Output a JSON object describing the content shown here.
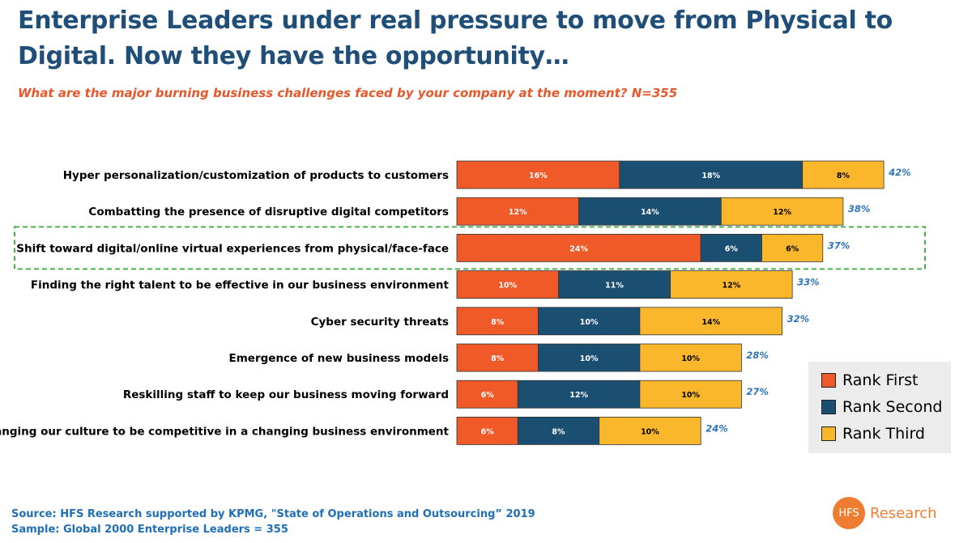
{
  "header": {
    "title": "Enterprise Leaders under real pressure to move from Physical to Digital.  Now they have the opportunity…",
    "subtitle": "What are the major burning business challenges faced by your company at the moment? N=355"
  },
  "colors": {
    "rank_first": "#f05a28",
    "rank_second": "#1b4f72",
    "rank_third": "#fbb72c",
    "total_label": "#2e75b6",
    "highlight_border": "#4caf50"
  },
  "chart_data": {
    "type": "bar",
    "orientation": "horizontal",
    "stacked": true,
    "categories": [
      "Hyper personalization/customization of products to customers",
      "Combatting the presence of disruptive digital competitors",
      "Shift toward digital/online virtual experiences from physical/face-face",
      "Finding the right talent to be effective in our business environment",
      "Cyber security threats",
      "Emergence of new business models",
      "Reskilling staff to keep our business moving forward",
      "Changing our culture to be competitive in a changing business environment"
    ],
    "series": [
      {
        "name": "Rank First",
        "values": [
          16,
          12,
          24,
          10,
          8,
          8,
          6,
          6
        ],
        "labels": [
          "16%",
          "12%",
          "24%",
          "10%",
          "8%",
          "8%",
          "6%",
          "6%"
        ]
      },
      {
        "name": "Rank Second",
        "values": [
          18,
          14,
          6,
          11,
          10,
          10,
          12,
          8
        ],
        "labels": [
          "18%",
          "14%",
          "6%",
          "11%",
          "10%",
          "10%",
          "12%",
          "8%"
        ]
      },
      {
        "name": "Rank Third",
        "values": [
          8,
          12,
          6,
          12,
          14,
          10,
          10,
          10
        ],
        "labels": [
          "8%",
          "12%",
          "6%",
          "12%",
          "14%",
          "10%",
          "10%",
          "10%"
        ]
      }
    ],
    "totals": [
      42,
      38,
      37,
      33,
      32,
      28,
      27,
      24
    ],
    "total_labels": [
      "42%",
      "38%",
      "37%",
      "33%",
      "32%",
      "28%",
      "27%",
      "24%"
    ],
    "unit": "%",
    "highlighted_category": "Shift toward digital/online virtual experiences from physical/face-face",
    "legend_position": "bottom-right"
  },
  "legend": {
    "items": [
      {
        "label": "Rank First"
      },
      {
        "label": "Rank Second"
      },
      {
        "label": "Rank Third"
      }
    ]
  },
  "footer": {
    "source": "Source: HFS Research supported by KPMG, \"State of Operations and Outsourcing” 2019",
    "sample": "Sample: Global 2000 Enterprise Leaders = 355",
    "logo_mark": "HFS",
    "logo_text": "Research"
  }
}
